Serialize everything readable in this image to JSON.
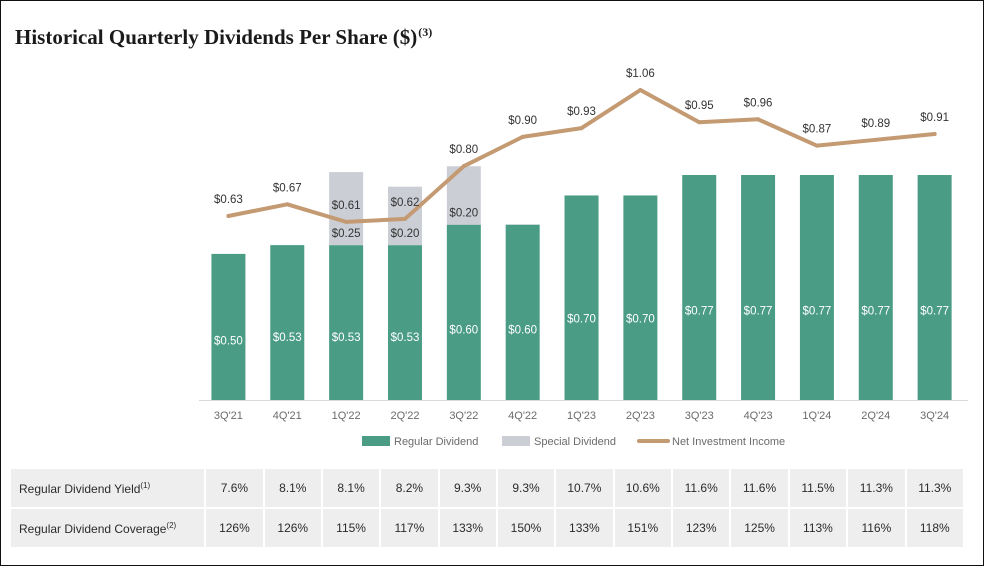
{
  "title": "Historical Quarterly Dividends Per Share ($)",
  "title_note": "(3)",
  "colors": {
    "regular": "#4a9c85",
    "special": "#ccced6",
    "nii": "#c39a72"
  },
  "chart_data": {
    "type": "bar",
    "categories": [
      "3Q'21",
      "4Q'21",
      "1Q'22",
      "2Q'22",
      "3Q'22",
      "4Q'22",
      "1Q'23",
      "2Q'23",
      "3Q'23",
      "4Q'23",
      "1Q'24",
      "2Q'24",
      "3Q'24"
    ],
    "series": [
      {
        "name": "Regular Dividend",
        "type": "bar",
        "values": [
          0.5,
          0.53,
          0.53,
          0.53,
          0.6,
          0.6,
          0.7,
          0.7,
          0.77,
          0.77,
          0.77,
          0.77,
          0.77
        ],
        "labels": [
          "$0.50",
          "$0.53",
          "$0.53",
          "$0.53",
          "$0.60",
          "$0.60",
          "$0.70",
          "$0.70",
          "$0.77",
          "$0.77",
          "$0.77",
          "$0.77",
          "$0.77"
        ]
      },
      {
        "name": "Special Dividend",
        "type": "bar-stacked",
        "values": [
          0,
          0,
          0.25,
          0.2,
          0.2,
          0,
          0,
          0,
          0,
          0,
          0,
          0,
          0
        ],
        "labels": [
          "",
          "",
          "$0.25",
          "$0.20",
          "$0.20",
          "",
          "",
          "",
          "",
          "",
          "",
          "",
          ""
        ]
      },
      {
        "name": "Net Investment Income",
        "type": "line",
        "values": [
          0.63,
          0.67,
          0.61,
          0.62,
          0.8,
          0.9,
          0.93,
          1.06,
          0.95,
          0.96,
          0.87,
          0.89,
          0.91
        ],
        "labels": [
          "$0.63",
          "$0.67",
          "$0.61",
          "$0.62",
          "$0.80",
          "$0.90",
          "$0.93",
          "$1.06",
          "$0.95",
          "$0.96",
          "$0.87",
          "$0.89",
          "$0.91"
        ]
      }
    ],
    "ylim": [
      0,
      1.06
    ],
    "grid": false,
    "legend_position": "bottom-center"
  },
  "table": {
    "rows": [
      {
        "label": "Regular Dividend Yield",
        "note": "(1)",
        "values": [
          "7.6%",
          "8.1%",
          "8.1%",
          "8.2%",
          "9.3%",
          "9.3%",
          "10.7%",
          "10.6%",
          "11.6%",
          "11.6%",
          "11.5%",
          "11.3%",
          "11.3%"
        ]
      },
      {
        "label": "Regular Dividend Coverage",
        "note": "(2)",
        "values": [
          "126%",
          "126%",
          "115%",
          "117%",
          "133%",
          "150%",
          "133%",
          "151%",
          "123%",
          "125%",
          "113%",
          "116%",
          "118%"
        ]
      }
    ]
  }
}
